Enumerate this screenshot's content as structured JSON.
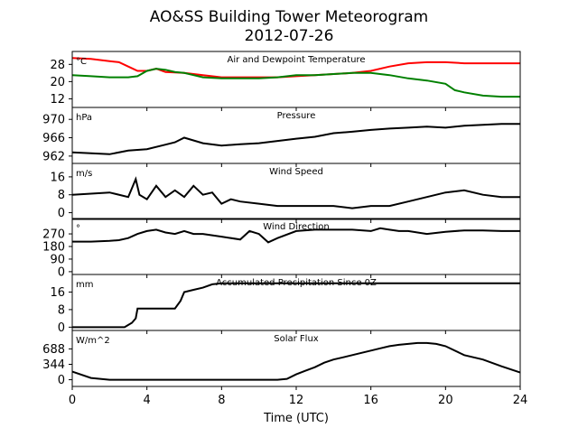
{
  "figure": {
    "title_line1": "AO&SS Building Tower Meteorogram",
    "title_line2": "2012-07-26",
    "xlabel": "Time (UTC)"
  },
  "chart_data": {
    "type": "line",
    "x_axis": {
      "label": "Time (UTC)",
      "range": [
        0,
        24
      ],
      "ticks": [
        0,
        4,
        8,
        12,
        16,
        20,
        24
      ]
    },
    "panels": [
      {
        "id": "temp",
        "title": "Air and Dewpoint Temperature",
        "unit": "°C",
        "ylim": [
          8,
          34
        ],
        "yticks": [
          12,
          20,
          28
        ],
        "series": [
          {
            "color": "#ff0000",
            "x": [
              0,
              1,
              2,
              2.5,
              3,
              3.5,
              4,
              4.5,
              5,
              6,
              7,
              8,
              9,
              10,
              11,
              12,
              13,
              14,
              15,
              16,
              17,
              18,
              19,
              20,
              21,
              22,
              23,
              24
            ],
            "y": [
              31,
              30.5,
              29.5,
              29,
              27,
              25,
              25,
              26,
              24.5,
              24,
              23,
              22,
              22,
              22,
              22,
              22.5,
              23,
              23.5,
              24,
              25,
              27,
              28.5,
              29,
              29,
              28.5,
              28.5,
              28.5,
              28.5
            ]
          },
          {
            "color": "#008000",
            "x": [
              0,
              1,
              2,
              3,
              3.5,
              4,
              4.5,
              5,
              5.5,
              6,
              6.5,
              7,
              8,
              9,
              10,
              11,
              12,
              13,
              14,
              15,
              16,
              17,
              18,
              19,
              20,
              20.5,
              21,
              22,
              23,
              24
            ],
            "y": [
              23,
              22.5,
              22,
              22,
              22.5,
              25,
              26,
              25.5,
              24.5,
              24,
              23,
              22,
              21.5,
              21.5,
              21.5,
              22,
              23,
              23,
              23.5,
              24,
              24,
              23,
              21.5,
              20.5,
              19,
              16,
              15,
              13.5,
              13,
              13
            ]
          }
        ]
      },
      {
        "id": "pressure",
        "title": "Pressure",
        "unit": "hPa",
        "ylim": [
          960.4,
          972.6
        ],
        "yticks": [
          962,
          966,
          970
        ],
        "series": [
          {
            "color": "#000000",
            "x": [
              0,
              1,
              2,
              3,
              4,
              5,
              5.5,
              6,
              7,
              8,
              9,
              10,
              11,
              12,
              13,
              14,
              15,
              16,
              17,
              18,
              19,
              20,
              21,
              22,
              23,
              24
            ],
            "y": [
              962.8,
              962.6,
              962.4,
              963.2,
              963.5,
              964.5,
              965,
              966,
              964.8,
              964.3,
              964.6,
              964.8,
              965.3,
              965.8,
              966.2,
              967,
              967.3,
              967.7,
              968,
              968.2,
              968.4,
              968.2,
              968.6,
              968.8,
              969,
              969
            ]
          }
        ]
      },
      {
        "id": "wind_speed",
        "title": "Wind Speed",
        "unit": "m/s",
        "ylim": [
          -3,
          22
        ],
        "yticks": [
          0,
          8,
          16
        ],
        "series": [
          {
            "color": "#000000",
            "x": [
              0,
              1,
              2,
              3,
              3.4,
              3.6,
              4,
              4.5,
              5,
              5.5,
              6,
              6.5,
              7,
              7.5,
              8,
              8.5,
              9,
              10,
              11,
              12,
              13,
              14,
              15,
              16,
              17,
              18,
              19,
              20,
              21,
              22,
              23,
              24
            ],
            "y": [
              8,
              8.5,
              9,
              7,
              15,
              8,
              6,
              12,
              7,
              10,
              7,
              12,
              8,
              9,
              4,
              6,
              5,
              4,
              3,
              3,
              3,
              3,
              2,
              3,
              3,
              5,
              7,
              9,
              10,
              8,
              7,
              7
            ]
          }
        ]
      },
      {
        "id": "wind_dir",
        "title": "Wind Direction",
        "unit": "°",
        "ylim": [
          -20,
          380
        ],
        "yticks": [
          0,
          90,
          180,
          270
        ],
        "series": [
          {
            "color": "#000000",
            "x": [
              0,
              1,
              2,
              2.5,
              3,
              3.5,
              4,
              4.5,
              5,
              5.5,
              6,
              6.5,
              7,
              7.5,
              8,
              9,
              9.5,
              10,
              10.5,
              11,
              12,
              13,
              14,
              15,
              16,
              16.5,
              17,
              17.5,
              18,
              19,
              20,
              21,
              22,
              23,
              24
            ],
            "y": [
              215,
              215,
              220,
              225,
              240,
              270,
              290,
              300,
              280,
              270,
              290,
              270,
              270,
              260,
              250,
              230,
              290,
              270,
              210,
              240,
              290,
              300,
              300,
              300,
              290,
              310,
              300,
              290,
              290,
              270,
              285,
              295,
              295,
              290,
              290
            ]
          }
        ]
      },
      {
        "id": "precip",
        "title": "Accumulated Precipitation Since 0Z",
        "unit": "mm",
        "ylim": [
          -1.5,
          24
        ],
        "yticks": [
          0,
          8,
          16
        ],
        "series": [
          {
            "color": "#000000",
            "x": [
              0,
              2.8,
              3.2,
              3.4,
              3.5,
              5.5,
              5.8,
              6,
              6.5,
              7,
              7.5,
              8,
              9,
              24
            ],
            "y": [
              0,
              0,
              2,
              4,
              8.5,
              8.5,
              12,
              16,
              17,
              18,
              19.5,
              20,
              20,
              20
            ]
          }
        ]
      },
      {
        "id": "solar",
        "title": "Solar Flux",
        "unit": "W/m^2",
        "ylim": [
          -150,
          1100
        ],
        "yticks": [
          0,
          344,
          688
        ],
        "series": [
          {
            "color": "#000000",
            "x": [
              0,
              1,
              2,
              3,
              4,
              5,
              6,
              7,
              8,
              9,
              10,
              11,
              11.5,
              12,
              12.5,
              13,
              13.5,
              14,
              14.5,
              15,
              15.5,
              16,
              16.5,
              17,
              17.5,
              18,
              18.5,
              19,
              19.5,
              20,
              21,
              22,
              23,
              24
            ],
            "y": [
              180,
              40,
              0,
              0,
              0,
              0,
              0,
              0,
              0,
              0,
              0,
              0,
              20,
              120,
              200,
              280,
              380,
              450,
              500,
              550,
              600,
              650,
              700,
              750,
              780,
              800,
              820,
              820,
              800,
              750,
              550,
              450,
              300,
              160
            ]
          }
        ]
      }
    ]
  }
}
